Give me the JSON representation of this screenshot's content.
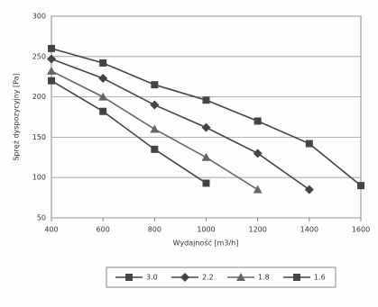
{
  "chart_data": {
    "type": "line",
    "y_label": "Spręż dyspozycyjny [Pa]",
    "x_label": "Wydajność [m3/h]",
    "x": [
      400,
      600,
      800,
      1000,
      1200,
      1400,
      1600
    ],
    "xlim": [
      400,
      1600
    ],
    "xticks": [
      400,
      600,
      800,
      1000,
      1200,
      1400,
      1600
    ],
    "ylim": [
      50,
      300
    ],
    "yticks": [
      50,
      100,
      150,
      200,
      250,
      300
    ],
    "grid": true,
    "legend": "bottom",
    "series": [
      {
        "name": "3.0",
        "color": "#444444",
        "marker": "square",
        "values": [
          260,
          242,
          215,
          196,
          170,
          142,
          90
        ]
      },
      {
        "name": "2.2",
        "color": "#444444",
        "marker": "diamond",
        "values": [
          247,
          223,
          190,
          162,
          130,
          85,
          null
        ]
      },
      {
        "name": "1.8",
        "color": "#666666",
        "marker": "triangle",
        "values": [
          232,
          200,
          160,
          125,
          85,
          null,
          null
        ]
      },
      {
        "name": "1.6",
        "color": "#444444",
        "marker": "square",
        "values": [
          220,
          182,
          135,
          93,
          null,
          null,
          null
        ]
      }
    ]
  }
}
